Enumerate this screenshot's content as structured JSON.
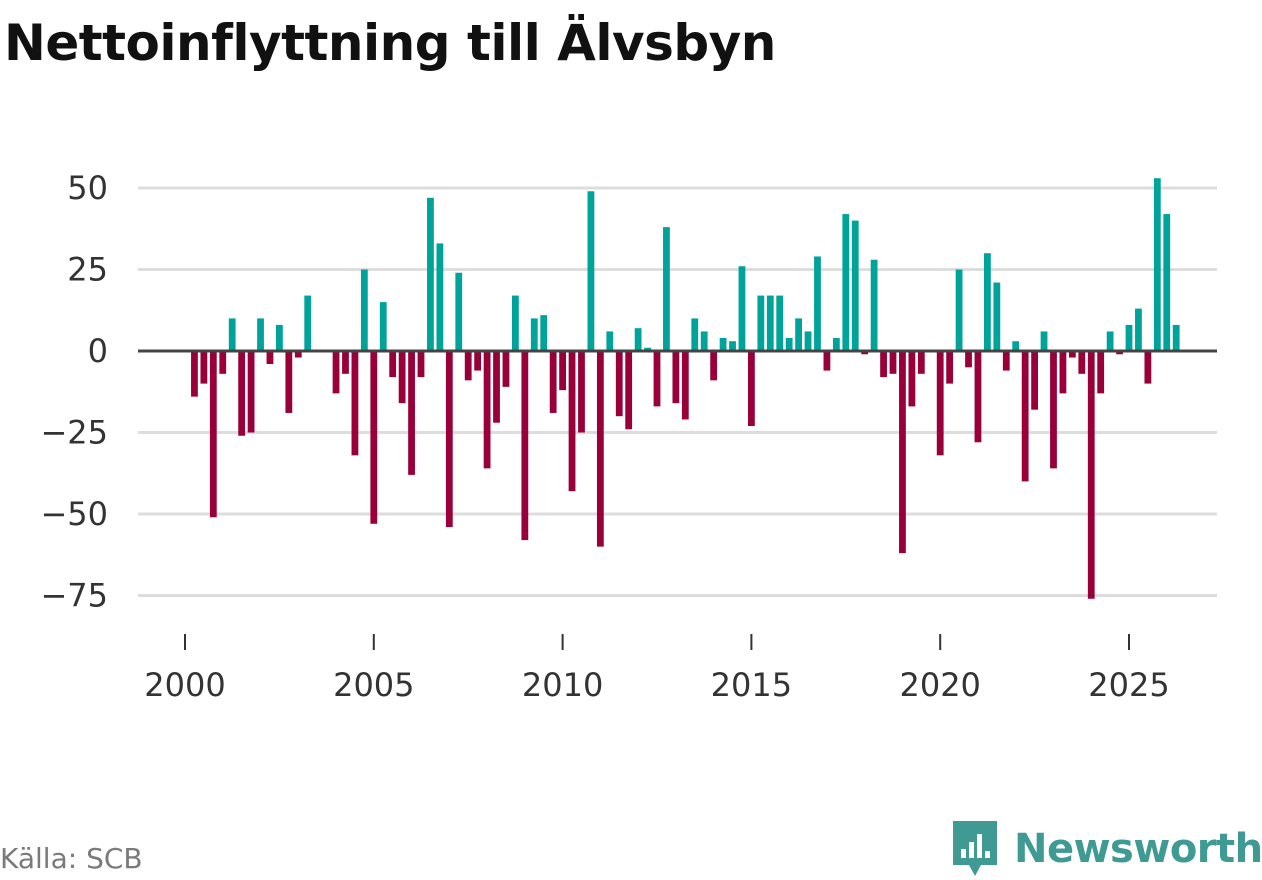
{
  "title": "Nettoinflyttning till Älvsbyn",
  "source": "Källa: SCB",
  "brand": {
    "name": "Newsworthy",
    "icon": "newsworthy-logo-icon"
  },
  "colors": {
    "positive": "#00a399",
    "negative": "#990039",
    "grid": "#dddddd",
    "zero_line": "#444444"
  },
  "chart_data": {
    "type": "bar",
    "title": "Nettoinflyttning till Älvsbyn",
    "xlabel": "",
    "ylabel": "",
    "ylim": [
      -80,
      60
    ],
    "y_ticks": [
      50,
      25,
      0,
      -25,
      -50,
      -75
    ],
    "y_tick_labels": [
      "50",
      "25",
      "0",
      "−25",
      "−50",
      "−75"
    ],
    "x_range": [
      1999.5,
      2026.45
    ],
    "x_ticks": [
      2000,
      2005,
      2010,
      2015,
      2020,
      2025
    ],
    "x_tick_labels": [
      "2000",
      "2005",
      "2010",
      "2015",
      "2020",
      "2025"
    ],
    "grid": true,
    "period": "quarterly, 2000 Q1 – 2026 Q1",
    "values": [
      0,
      -14,
      -10,
      -51,
      -7,
      10,
      -26,
      -25,
      10,
      -4,
      8,
      -19,
      -2,
      17,
      0,
      0,
      -13,
      -7,
      -32,
      25,
      -53,
      15,
      -8,
      -16,
      -38,
      -8,
      47,
      33,
      -54,
      24,
      -9,
      -6,
      -36,
      -22,
      -11,
      17,
      -58,
      10,
      11,
      -19,
      -12,
      -43,
      -25,
      49,
      -60,
      6,
      -20,
      -24,
      7,
      1,
      -17,
      38,
      -16,
      -21,
      10,
      6,
      -9,
      4,
      3,
      26,
      -23,
      17,
      17,
      17,
      4,
      10,
      6,
      29,
      -6,
      4,
      42,
      40,
      -1,
      28,
      -8,
      -7,
      -62,
      -17,
      -7,
      0,
      -32,
      -10,
      25,
      -5,
      -28,
      30,
      21,
      -6,
      3,
      -40,
      -18,
      6,
      -36,
      -13,
      -2,
      -7,
      -76,
      -13,
      6,
      -1,
      8,
      13,
      -10,
      53,
      42,
      8
    ]
  }
}
